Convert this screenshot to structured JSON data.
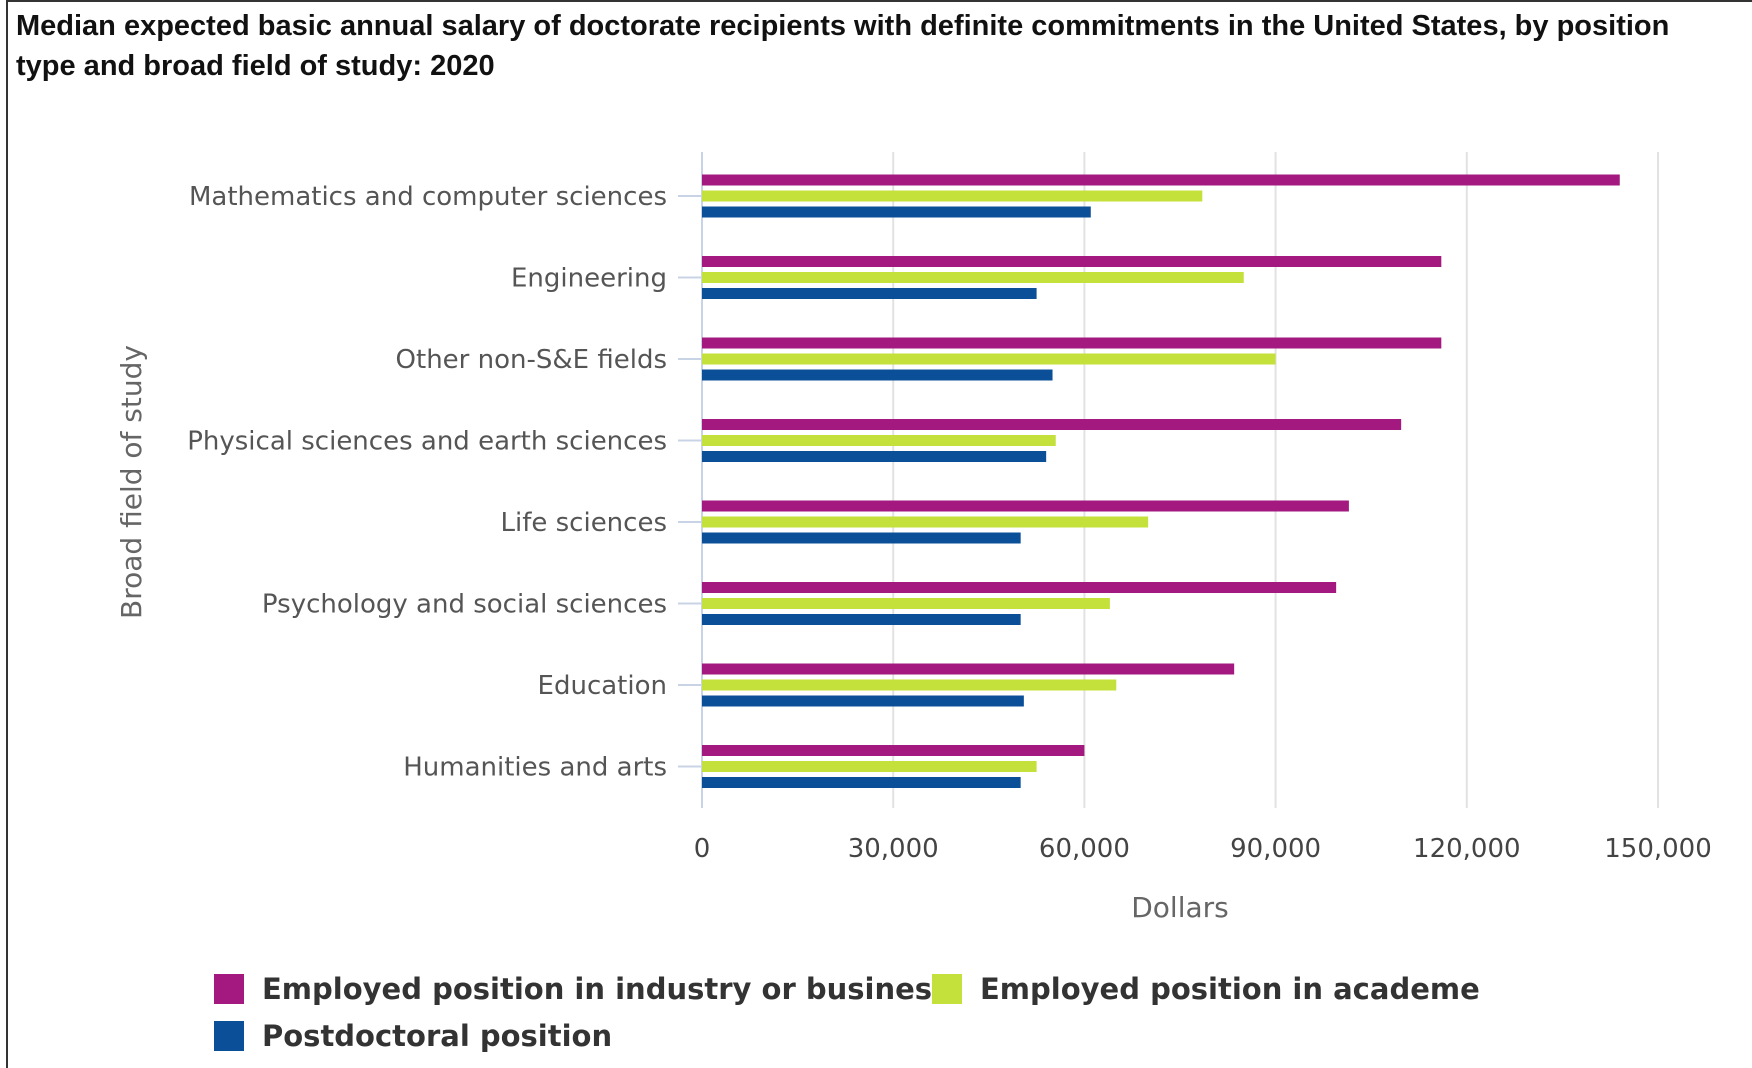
{
  "title": "Median expected basic annual salary of doctorate recipients with definite commitments in the United States, by position type and broad field of study: 2020",
  "chart_data": {
    "type": "bar",
    "orientation": "horizontal",
    "categories": [
      "Mathematics and computer sciences",
      "Engineering",
      "Other non-S&E fields",
      "Physical sciences and earth sciences",
      "Life sciences",
      "Psychology and social sciences",
      "Education",
      "Humanities and arts"
    ],
    "series": [
      {
        "name": "Employed position in industry or business",
        "color": "#a3197f",
        "values": [
          144000,
          116000,
          116000,
          109700,
          101500,
          99500,
          83500,
          60000
        ]
      },
      {
        "name": "Employed position in academe",
        "color": "#c4e03a",
        "values": [
          78500,
          85000,
          90000,
          55500,
          70000,
          64000,
          65000,
          52500
        ]
      },
      {
        "name": "Postdoctoral position",
        "color": "#0b4f98",
        "values": [
          61000,
          52500,
          55000,
          54000,
          50000,
          50000,
          50500,
          50000
        ]
      }
    ],
    "xlabel": "Dollars",
    "ylabel": "Broad field of study",
    "xlim": [
      0,
      150000
    ],
    "xticks": [
      0,
      30000,
      60000,
      90000,
      120000,
      150000
    ],
    "xtick_labels": [
      "0",
      "30,000",
      "60,000",
      "90,000",
      "120,000",
      "150,000"
    ],
    "grid": "vertical",
    "legend_position": "bottom-left"
  }
}
